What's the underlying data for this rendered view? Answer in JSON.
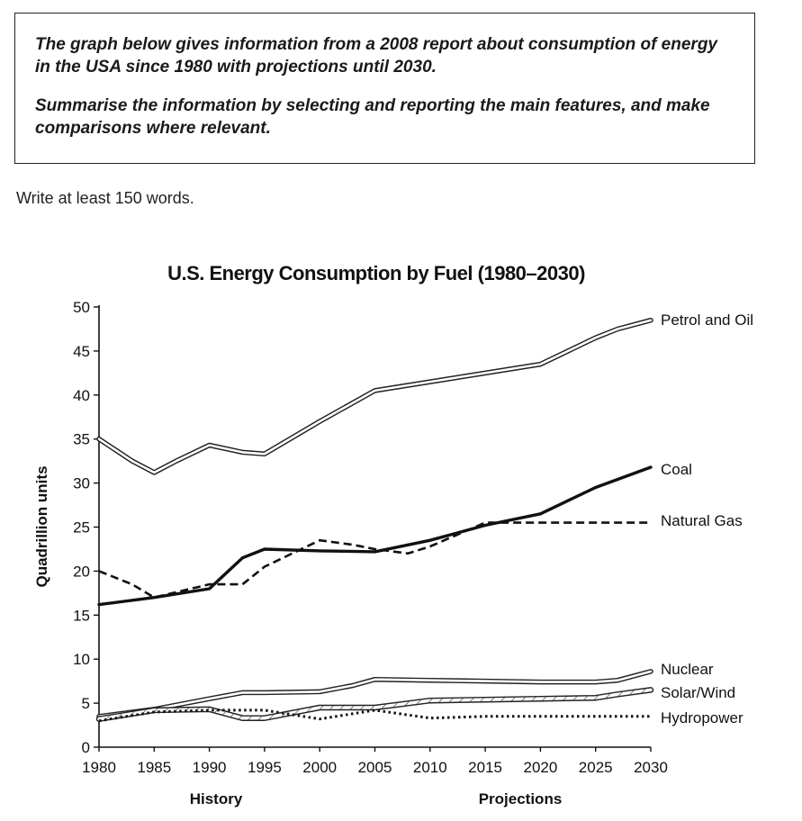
{
  "prompt": {
    "line1": "The graph below gives information from a 2008 report about consumption of energy in the USA since 1980 with projections until 2030.",
    "line2": "Summarise the information by selecting and reporting the main features, and make comparisons where relevant."
  },
  "instruction": "Write at least 150 words.",
  "chart_data": {
    "type": "line",
    "title": "U.S. Energy Consumption by Fuel (1980–2030)",
    "xlabel": "",
    "ylabel": "Quadrillion units",
    "x_sections": [
      "History",
      "Projections"
    ],
    "xlim": [
      1980,
      2030
    ],
    "ylim": [
      0,
      50
    ],
    "x_ticks": [
      1980,
      1985,
      1990,
      1995,
      2000,
      2005,
      2010,
      2015,
      2020,
      2025,
      2030
    ],
    "y_ticks": [
      0,
      5,
      10,
      15,
      20,
      25,
      30,
      35,
      40,
      45,
      50
    ],
    "grid": false,
    "series": [
      {
        "name": "Petrol and Oil",
        "style": "double",
        "x": [
          1980,
          1983,
          1985,
          1987,
          1990,
          1993,
          1995,
          2000,
          2005,
          2010,
          2015,
          2020,
          2025,
          2027,
          2030
        ],
        "values": [
          35,
          32.5,
          31.2,
          32.5,
          34.3,
          33.5,
          33.3,
          37,
          40.5,
          41.5,
          42.5,
          43.5,
          46.5,
          47.5,
          48.5
        ]
      },
      {
        "name": "Coal",
        "style": "solid-thick",
        "x": [
          1980,
          1985,
          1990,
          1993,
          1995,
          2000,
          2005,
          2010,
          2015,
          2020,
          2025,
          2030
        ],
        "values": [
          16.2,
          17,
          18,
          21.5,
          22.5,
          22.3,
          22.2,
          23.5,
          25.2,
          26.5,
          29.5,
          31.8
        ]
      },
      {
        "name": "Natural Gas",
        "style": "dashed",
        "x": [
          1980,
          1983,
          1985,
          1990,
          1993,
          1995,
          2000,
          2003,
          2005,
          2008,
          2010,
          2015,
          2020,
          2030
        ],
        "values": [
          20,
          18.5,
          17,
          18.5,
          18.5,
          20.5,
          23.5,
          23,
          22.5,
          22,
          22.8,
          25.5,
          25.5,
          25.5
        ]
      },
      {
        "name": "Nuclear",
        "style": "double",
        "x": [
          1980,
          1985,
          1990,
          1993,
          1995,
          2000,
          2003,
          2005,
          2010,
          2015,
          2020,
          2025,
          2027,
          2030
        ],
        "values": [
          3.5,
          4.3,
          5.5,
          6.2,
          6.2,
          6.3,
          7,
          7.7,
          7.6,
          7.5,
          7.4,
          7.4,
          7.6,
          8.6
        ]
      },
      {
        "name": "Solar/Wind",
        "style": "hatched",
        "x": [
          1980,
          1985,
          1990,
          1993,
          1995,
          2000,
          2005,
          2010,
          2015,
          2020,
          2025,
          2027,
          2030
        ],
        "values": [
          3.2,
          4.2,
          4.3,
          3.3,
          3.3,
          4.5,
          4.5,
          5.3,
          5.4,
          5.5,
          5.6,
          6,
          6.5
        ]
      },
      {
        "name": "Hydropower",
        "style": "dotted",
        "x": [
          1980,
          1985,
          1990,
          1995,
          2000,
          2005,
          2010,
          2015,
          2020,
          2025,
          2030
        ],
        "values": [
          3,
          4,
          4.2,
          4.2,
          3.2,
          4.2,
          3.3,
          3.5,
          3.5,
          3.5,
          3.5
        ]
      }
    ]
  }
}
